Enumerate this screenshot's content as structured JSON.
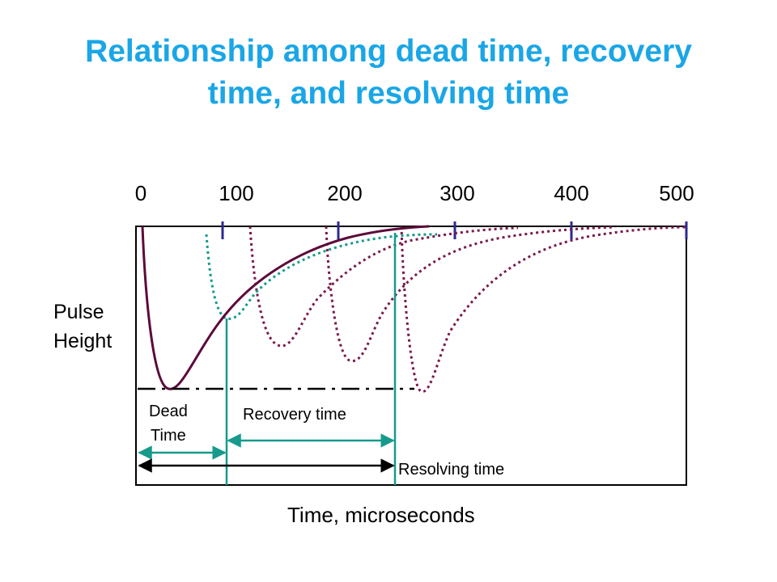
{
  "title": {
    "line1": "Relationship among dead time, recovery",
    "line2": "time, and resolving time"
  },
  "axis": {
    "ticks": [
      "0",
      "100",
      "200",
      "300",
      "400",
      "500"
    ],
    "ylabel_line1": "Pulse",
    "ylabel_line2": "Height",
    "xlabel": "Time, microseconds"
  },
  "annotations": {
    "dead_time_line1": "Dead",
    "dead_time_line2": "Time",
    "recovery_time": "Recovery time",
    "resolving_time": "Resolving time"
  },
  "colors": {
    "title": "#1aa6e6",
    "main_pulse": "#5c0a3a",
    "teal": "#169a8c",
    "dotted_pulse": "#7a1a4e",
    "tick_marks": "#2b2b8f"
  }
}
